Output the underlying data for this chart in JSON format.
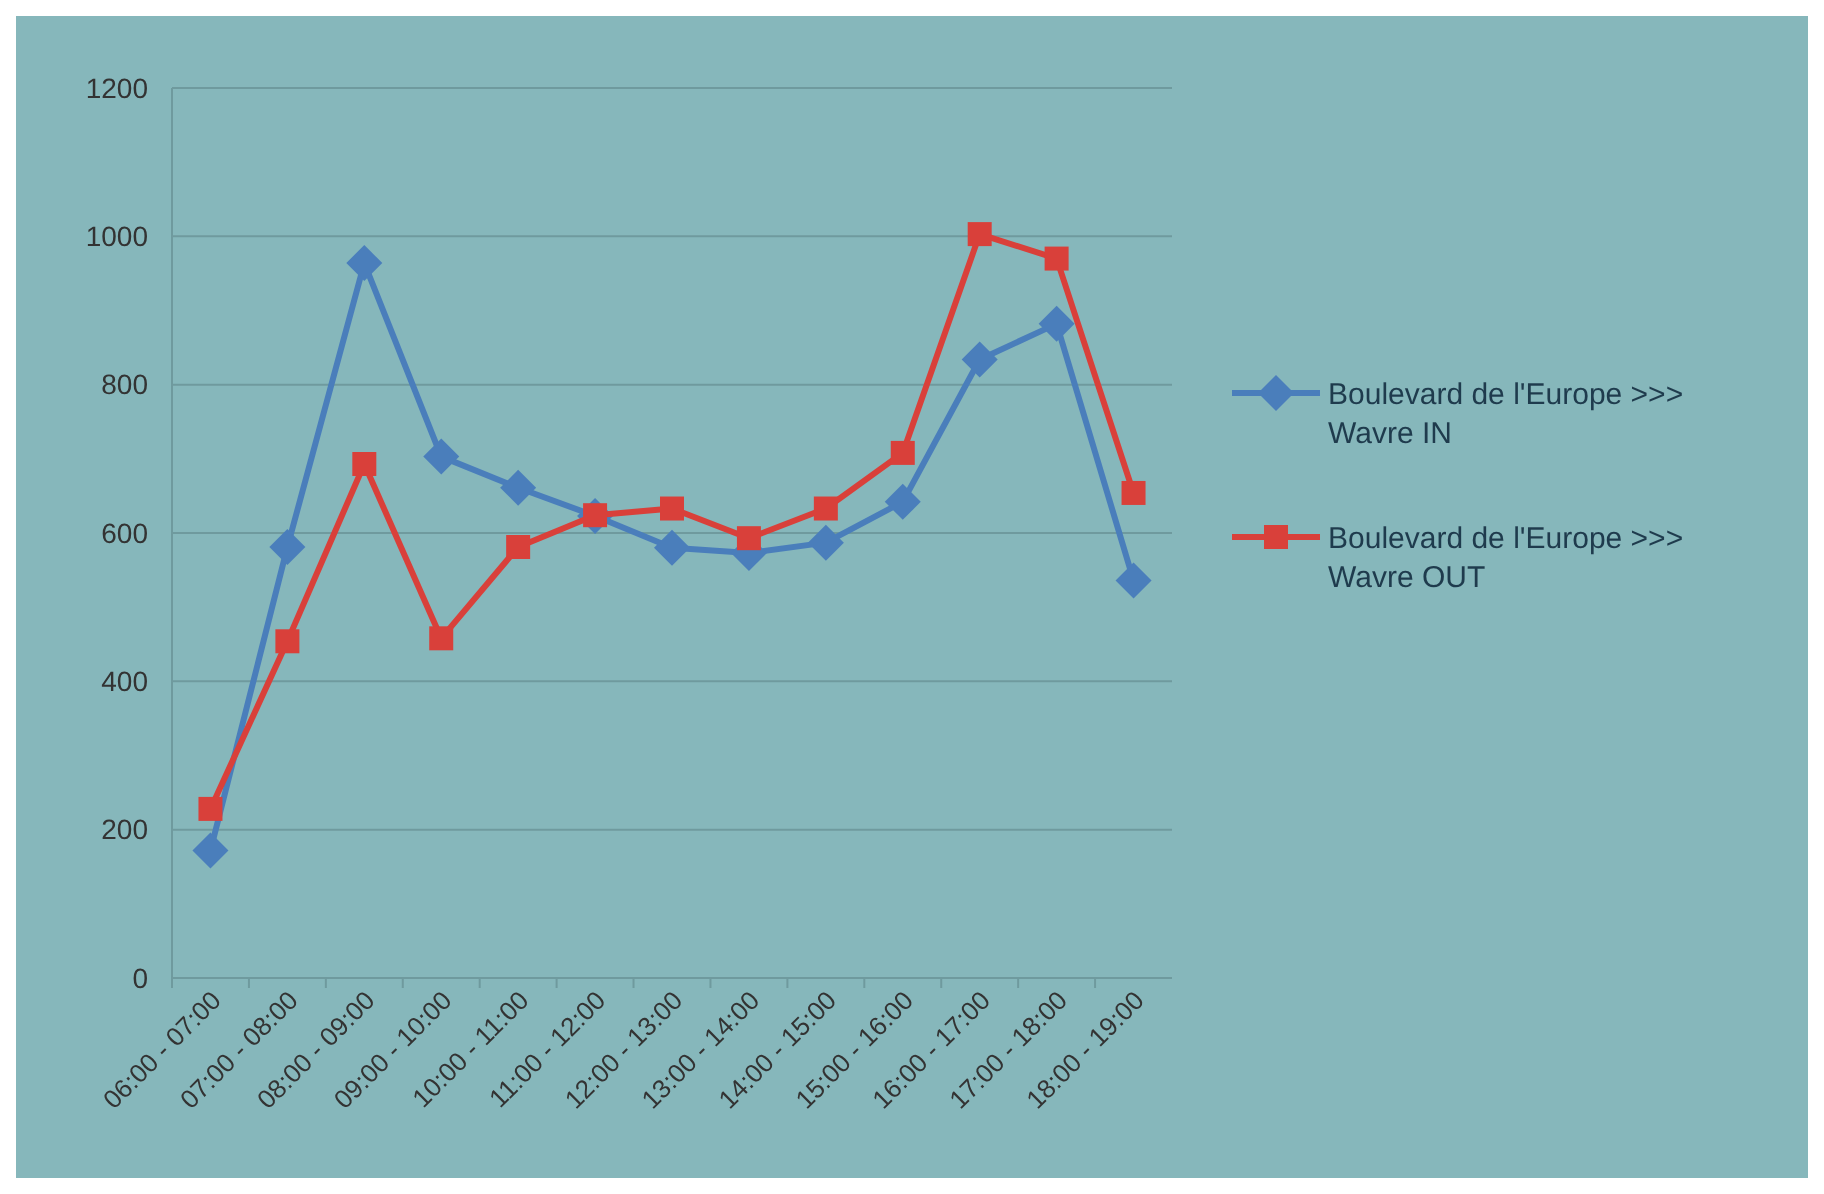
{
  "chart_data": {
    "type": "line",
    "categories": [
      "06:00 - 07:00",
      "07:00 - 08:00",
      "08:00 - 09:00",
      "09:00 - 10:00",
      "10:00 - 11:00",
      "11:00 - 12:00",
      "12:00 - 13:00",
      "13:00 - 14:00",
      "14:00 - 15:00",
      "15:00 - 16:00",
      "16:00 - 17:00",
      "17:00 - 18:00",
      "18:00 - 19:00"
    ],
    "series": [
      {
        "name": "Boulevard de l'Europe >>> Wavre IN",
        "color": "#4a7ebb",
        "marker": "diamond",
        "values": [
          172,
          581,
          964,
          703,
          661,
          623,
          580,
          573,
          587,
          642,
          834,
          882,
          536
        ]
      },
      {
        "name": "Boulevard de l'Europe >>> Wavre OUT",
        "color": "#d9403a",
        "marker": "square",
        "values": [
          228,
          454,
          693,
          458,
          581,
          624,
          633,
          593,
          633,
          708,
          1003,
          970,
          654
        ]
      }
    ],
    "ylim": [
      0,
      1200
    ],
    "yticks": [
      0,
      200,
      400,
      600,
      800,
      1000,
      1200
    ],
    "grid": "y",
    "legend": "right"
  }
}
